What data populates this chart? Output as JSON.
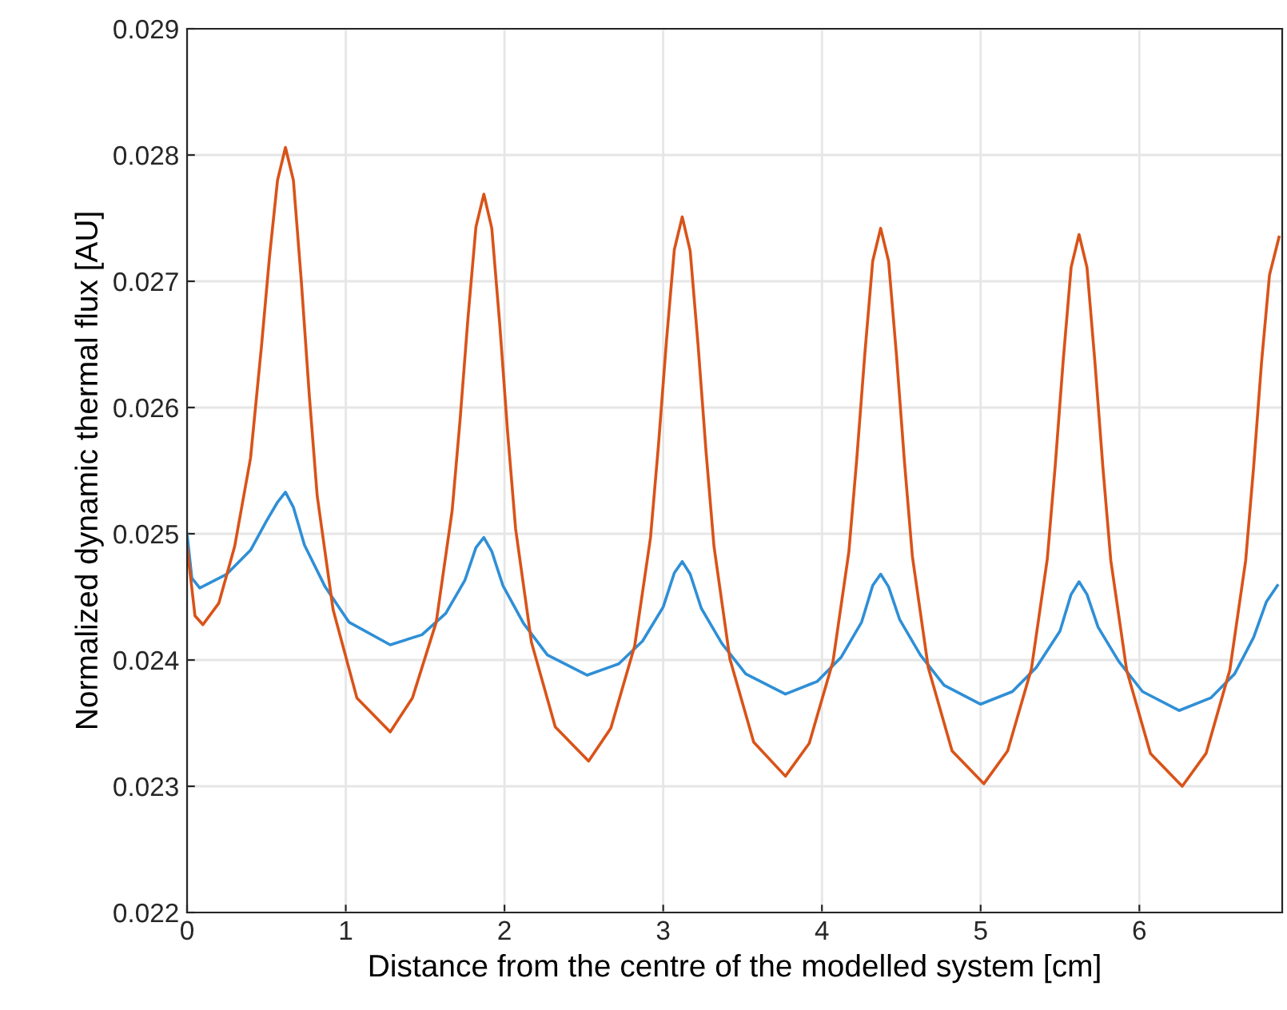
{
  "chart_data": {
    "type": "line",
    "xlabel": "Distance from the centre of the modelled system [cm]",
    "ylabel": "Normalized dynamic thermal flux [AU]",
    "xlim": [
      0,
      6.9
    ],
    "xticks": [
      0,
      1,
      2,
      3,
      4,
      5,
      6
    ],
    "ylim": [
      0.022,
      0.029
    ],
    "yticks": [
      {
        "value": 0.022,
        "label": "0.022"
      },
      {
        "value": 0.023,
        "label": "0.023"
      },
      {
        "value": 0.024,
        "label": "0.024"
      },
      {
        "value": 0.025,
        "label": "0.025"
      },
      {
        "value": 0.026,
        "label": "0.026"
      },
      {
        "value": 0.027,
        "label": "0.027"
      },
      {
        "value": 0.028,
        "label": "0.028"
      },
      {
        "value": 0.029,
        "label": "0.029"
      }
    ],
    "grid": true,
    "series": [
      {
        "color": "#2f8fd6",
        "x": [
          0,
          0.03,
          0.08,
          0.25,
          0.4,
          0.5,
          0.57,
          0.62,
          0.67,
          0.74,
          0.87,
          1.02,
          1.28,
          1.48,
          1.63,
          1.75,
          1.82,
          1.87,
          1.92,
          1.99,
          2.12,
          2.27,
          2.52,
          2.72,
          2.87,
          3.0,
          3.07,
          3.12,
          3.17,
          3.24,
          3.37,
          3.52,
          3.77,
          3.97,
          4.12,
          4.25,
          4.32,
          4.37,
          4.42,
          4.49,
          4.62,
          4.77,
          5.0,
          5.2,
          5.35,
          5.5,
          5.57,
          5.62,
          5.67,
          5.74,
          5.87,
          6.02,
          6.25,
          6.45,
          6.6,
          6.72,
          6.8,
          6.87
        ],
        "values": [
          0.025,
          0.02465,
          0.02457,
          0.02468,
          0.02487,
          0.0251,
          0.02525,
          0.02533,
          0.02521,
          0.02491,
          0.02458,
          0.0243,
          0.02412,
          0.0242,
          0.02437,
          0.02463,
          0.02489,
          0.02497,
          0.02486,
          0.02459,
          0.02429,
          0.02404,
          0.02388,
          0.02397,
          0.02415,
          0.02442,
          0.02469,
          0.02478,
          0.02468,
          0.02441,
          0.02413,
          0.02389,
          0.02373,
          0.02383,
          0.02402,
          0.0243,
          0.02459,
          0.02468,
          0.02458,
          0.02432,
          0.02404,
          0.0238,
          0.02365,
          0.02375,
          0.02394,
          0.02423,
          0.02452,
          0.02462,
          0.02452,
          0.02426,
          0.02399,
          0.02375,
          0.0236,
          0.0237,
          0.02389,
          0.02418,
          0.02446,
          0.02459
        ]
      },
      {
        "color": "#d95319",
        "x": [
          0,
          0.05,
          0.1,
          0.2,
          0.3,
          0.4,
          0.47,
          0.52,
          0.57,
          0.62,
          0.67,
          0.72,
          0.77,
          0.82,
          0.92,
          1.07,
          1.28,
          1.42,
          1.57,
          1.67,
          1.72,
          1.77,
          1.82,
          1.87,
          1.92,
          1.97,
          2.02,
          2.07,
          2.17,
          2.32,
          2.53,
          2.67,
          2.82,
          2.92,
          2.97,
          3.02,
          3.07,
          3.12,
          3.17,
          3.22,
          3.27,
          3.32,
          3.42,
          3.57,
          3.77,
          3.92,
          4.07,
          4.17,
          4.22,
          4.27,
          4.32,
          4.37,
          4.42,
          4.47,
          4.52,
          4.57,
          4.67,
          4.82,
          5.02,
          5.17,
          5.32,
          5.42,
          5.47,
          5.52,
          5.57,
          5.62,
          5.67,
          5.72,
          5.77,
          5.82,
          5.92,
          6.07,
          6.27,
          6.42,
          6.57,
          6.67,
          6.72,
          6.77,
          6.82,
          6.88
        ],
        "values": [
          0.0249,
          0.02435,
          0.02428,
          0.02445,
          0.0249,
          0.0256,
          0.0265,
          0.0272,
          0.0278,
          0.02806,
          0.0278,
          0.027,
          0.0261,
          0.0253,
          0.0244,
          0.0237,
          0.02343,
          0.0237,
          0.0243,
          0.02518,
          0.0259,
          0.02671,
          0.02743,
          0.02769,
          0.02742,
          0.02666,
          0.0258,
          0.02504,
          0.02414,
          0.02347,
          0.0232,
          0.02346,
          0.02411,
          0.02497,
          0.0257,
          0.02652,
          0.02725,
          0.02751,
          0.02724,
          0.02649,
          0.02565,
          0.0249,
          0.02401,
          0.02335,
          0.02308,
          0.02334,
          0.02399,
          0.02486,
          0.0256,
          0.02642,
          0.02716,
          0.02742,
          0.02716,
          0.02641,
          0.02557,
          0.02482,
          0.02394,
          0.02328,
          0.02302,
          0.02328,
          0.02393,
          0.0248,
          0.02554,
          0.02637,
          0.02711,
          0.02737,
          0.02711,
          0.02636,
          0.02553,
          0.02479,
          0.02392,
          0.02326,
          0.023,
          0.02326,
          0.02392,
          0.02479,
          0.02553,
          0.02636,
          0.02705,
          0.02735
        ]
      }
    ]
  }
}
